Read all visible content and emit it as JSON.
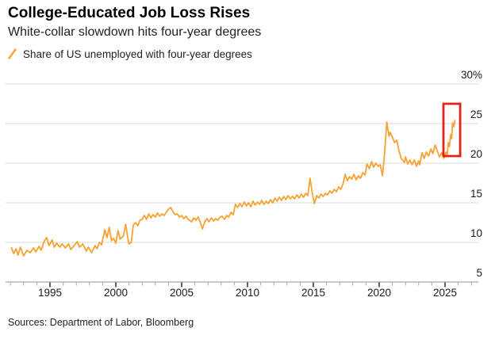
{
  "header": {
    "title": "College-Educated Job Loss Rises",
    "subtitle": "White-collar slowdown hits four-year degrees"
  },
  "legend": {
    "label": "Share of US unemployed with four-year degrees",
    "marker_color": "#f7a232"
  },
  "footer": {
    "sources": "Sources: Department of Labor, Bloomberg"
  },
  "chart_data": {
    "type": "line",
    "title": "College-Educated Job Loss Rises",
    "subtitle": "White-collar slowdown hits four-year degrees",
    "xlabel": "",
    "ylabel": "Share of US unemployed with four-year degrees (%)",
    "ylim": [
      5,
      30
    ],
    "xlim": [
      1991.7,
      2027.5
    ],
    "grid": "horizontal",
    "legend_position": "top-left",
    "line_color": "#f7a232",
    "grid_color": "#d8d8d8",
    "axis_color": "#a8a8a8",
    "tick_color_minor": "#a8a8a8",
    "tick_color_major": "#2b2b2b",
    "highlight_color": "#e02417",
    "y_ticks": [
      {
        "value": 30,
        "label": "30%"
      },
      {
        "value": 25,
        "label": "25"
      },
      {
        "value": 20,
        "label": "20"
      },
      {
        "value": 15,
        "label": "15"
      },
      {
        "value": 10,
        "label": "10"
      },
      {
        "value": 5,
        "label": "5"
      }
    ],
    "x_ticks": {
      "major": [
        {
          "value": 1995,
          "label": "1995"
        },
        {
          "value": 2000,
          "label": "2000"
        },
        {
          "value": 2005,
          "label": "2005"
        },
        {
          "value": 2010,
          "label": "2010"
        },
        {
          "value": 2015,
          "label": "2015"
        },
        {
          "value": 2020,
          "label": "2020"
        },
        {
          "value": 2025,
          "label": "2025"
        }
      ],
      "minor_step": 1,
      "minor_range": [
        1992,
        2027
      ]
    },
    "annotations": [
      {
        "type": "rect",
        "purpose": "highlight-recent-spike",
        "x1": 2024.88,
        "x2": 2026.15,
        "y1": 20.9,
        "y2": 27.5,
        "stroke": "#e02417",
        "stroke_width": 2.8
      }
    ],
    "series": [
      {
        "name": "Share of US unemployed with four-year degrees",
        "points": [
          [
            1992.08,
            9.3
          ],
          [
            1992.25,
            8.6
          ],
          [
            1992.42,
            9.2
          ],
          [
            1992.58,
            8.4
          ],
          [
            1992.75,
            9.4
          ],
          [
            1993.0,
            8.3
          ],
          [
            1993.25,
            9.0
          ],
          [
            1993.5,
            8.7
          ],
          [
            1993.75,
            9.3
          ],
          [
            1993.92,
            8.8
          ],
          [
            1994.17,
            9.5
          ],
          [
            1994.33,
            9.0
          ],
          [
            1994.58,
            10.2
          ],
          [
            1994.75,
            10.6
          ],
          [
            1994.92,
            9.6
          ],
          [
            1995.17,
            10.3
          ],
          [
            1995.33,
            9.4
          ],
          [
            1995.5,
            9.9
          ],
          [
            1995.75,
            9.4
          ],
          [
            1995.92,
            9.8
          ],
          [
            1996.17,
            9.3
          ],
          [
            1996.42,
            9.8
          ],
          [
            1996.58,
            9.1
          ],
          [
            1996.83,
            9.6
          ],
          [
            1997.08,
            10.1
          ],
          [
            1997.25,
            9.4
          ],
          [
            1997.5,
            9.8
          ],
          [
            1997.75,
            8.9
          ],
          [
            1997.92,
            9.4
          ],
          [
            1998.17,
            8.7
          ],
          [
            1998.42,
            9.6
          ],
          [
            1998.58,
            9.2
          ],
          [
            1998.75,
            10.0
          ],
          [
            1998.92,
            9.7
          ],
          [
            1999.17,
            11.6
          ],
          [
            1999.33,
            10.6
          ],
          [
            1999.5,
            11.9
          ],
          [
            1999.67,
            10.2
          ],
          [
            1999.83,
            10.5
          ],
          [
            2000.0,
            9.9
          ],
          [
            2000.17,
            11.5
          ],
          [
            2000.33,
            10.4
          ],
          [
            2000.58,
            10.8
          ],
          [
            2000.75,
            12.3
          ],
          [
            2000.92,
            10.5
          ],
          [
            2001.0,
            9.8
          ],
          [
            2001.17,
            10.0
          ],
          [
            2001.33,
            12.2
          ],
          [
            2001.5,
            12.5
          ],
          [
            2001.67,
            12.1
          ],
          [
            2001.83,
            12.8
          ],
          [
            2002.0,
            12.9
          ],
          [
            2002.17,
            13.4
          ],
          [
            2002.33,
            12.9
          ],
          [
            2002.5,
            13.6
          ],
          [
            2002.67,
            13.1
          ],
          [
            2002.83,
            13.5
          ],
          [
            2003.0,
            13.2
          ],
          [
            2003.17,
            13.7
          ],
          [
            2003.33,
            13.3
          ],
          [
            2003.5,
            13.6
          ],
          [
            2003.67,
            13.4
          ],
          [
            2003.83,
            13.8
          ],
          [
            2004.0,
            14.2
          ],
          [
            2004.17,
            14.4
          ],
          [
            2004.33,
            13.9
          ],
          [
            2004.5,
            13.5
          ],
          [
            2004.67,
            13.6
          ],
          [
            2004.83,
            13.2
          ],
          [
            2005.0,
            13.4
          ],
          [
            2005.17,
            13.0
          ],
          [
            2005.33,
            13.3
          ],
          [
            2005.5,
            12.9
          ],
          [
            2005.75,
            12.6
          ],
          [
            2005.92,
            13.1
          ],
          [
            2006.08,
            12.8
          ],
          [
            2006.25,
            13.2
          ],
          [
            2006.42,
            12.5
          ],
          [
            2006.58,
            11.7
          ],
          [
            2006.75,
            12.6
          ],
          [
            2006.92,
            13.0
          ],
          [
            2007.08,
            12.6
          ],
          [
            2007.25,
            13.1
          ],
          [
            2007.42,
            12.7
          ],
          [
            2007.58,
            13.0
          ],
          [
            2007.75,
            12.8
          ],
          [
            2007.92,
            13.2
          ],
          [
            2008.08,
            13.3
          ],
          [
            2008.25,
            12.9
          ],
          [
            2008.42,
            13.4
          ],
          [
            2008.58,
            13.2
          ],
          [
            2008.75,
            13.8
          ],
          [
            2008.92,
            13.5
          ],
          [
            2009.08,
            14.8
          ],
          [
            2009.25,
            14.4
          ],
          [
            2009.42,
            14.9
          ],
          [
            2009.58,
            14.5
          ],
          [
            2009.75,
            15.1
          ],
          [
            2009.92,
            14.6
          ],
          [
            2010.08,
            15.0
          ],
          [
            2010.25,
            14.5
          ],
          [
            2010.42,
            15.2
          ],
          [
            2010.58,
            14.7
          ],
          [
            2010.75,
            15.1
          ],
          [
            2010.92,
            14.8
          ],
          [
            2011.08,
            15.3
          ],
          [
            2011.25,
            14.8
          ],
          [
            2011.42,
            15.2
          ],
          [
            2011.58,
            14.9
          ],
          [
            2011.75,
            15.4
          ],
          [
            2011.92,
            15.0
          ],
          [
            2012.08,
            15.6
          ],
          [
            2012.25,
            15.2
          ],
          [
            2012.42,
            15.7
          ],
          [
            2012.58,
            15.3
          ],
          [
            2012.75,
            15.8
          ],
          [
            2012.92,
            15.4
          ],
          [
            2013.08,
            15.9
          ],
          [
            2013.25,
            15.5
          ],
          [
            2013.42,
            15.8
          ],
          [
            2013.58,
            15.5
          ],
          [
            2013.75,
            16.0
          ],
          [
            2013.92,
            15.6
          ],
          [
            2014.08,
            16.1
          ],
          [
            2014.25,
            15.7
          ],
          [
            2014.42,
            16.2
          ],
          [
            2014.58,
            15.9
          ],
          [
            2014.75,
            18.1
          ],
          [
            2014.92,
            16.2
          ],
          [
            2015.08,
            14.9
          ],
          [
            2015.25,
            15.9
          ],
          [
            2015.42,
            15.6
          ],
          [
            2015.58,
            16.1
          ],
          [
            2015.75,
            15.8
          ],
          [
            2015.92,
            16.2
          ],
          [
            2016.08,
            16.0
          ],
          [
            2016.25,
            16.5
          ],
          [
            2016.42,
            16.2
          ],
          [
            2016.58,
            16.7
          ],
          [
            2016.75,
            16.4
          ],
          [
            2016.92,
            17.0
          ],
          [
            2017.08,
            16.7
          ],
          [
            2017.25,
            17.4
          ],
          [
            2017.42,
            18.6
          ],
          [
            2017.58,
            17.8
          ],
          [
            2017.75,
            18.3
          ],
          [
            2017.92,
            18.0
          ],
          [
            2018.08,
            18.6
          ],
          [
            2018.25,
            17.9
          ],
          [
            2018.42,
            18.4
          ],
          [
            2018.58,
            18.1
          ],
          [
            2018.75,
            18.8
          ],
          [
            2018.92,
            18.5
          ],
          [
            2019.08,
            19.9
          ],
          [
            2019.25,
            19.3
          ],
          [
            2019.42,
            20.2
          ],
          [
            2019.58,
            19.5
          ],
          [
            2019.75,
            20.0
          ],
          [
            2019.92,
            19.6
          ],
          [
            2020.08,
            19.8
          ],
          [
            2020.25,
            18.4
          ],
          [
            2020.42,
            21.5
          ],
          [
            2020.58,
            25.2
          ],
          [
            2020.67,
            24.2
          ],
          [
            2020.75,
            23.4
          ],
          [
            2020.83,
            23.9
          ],
          [
            2021.0,
            23.3
          ],
          [
            2021.17,
            22.6
          ],
          [
            2021.33,
            22.9
          ],
          [
            2021.5,
            21.6
          ],
          [
            2021.67,
            20.6
          ],
          [
            2021.92,
            20.1
          ],
          [
            2022.0,
            20.8
          ],
          [
            2022.17,
            19.9
          ],
          [
            2022.33,
            20.4
          ],
          [
            2022.5,
            19.8
          ],
          [
            2022.67,
            20.4
          ],
          [
            2022.83,
            19.6
          ],
          [
            2023.0,
            20.3
          ],
          [
            2023.08,
            19.8
          ],
          [
            2023.25,
            21.3
          ],
          [
            2023.42,
            20.6
          ],
          [
            2023.58,
            21.4
          ],
          [
            2023.75,
            20.9
          ],
          [
            2023.92,
            21.8
          ],
          [
            2024.08,
            21.2
          ],
          [
            2024.25,
            22.3
          ],
          [
            2024.42,
            21.5
          ],
          [
            2024.58,
            20.8
          ],
          [
            2024.75,
            21.3
          ],
          [
            2024.92,
            20.6
          ],
          [
            2025.08,
            21.4
          ],
          [
            2025.17,
            21.1
          ],
          [
            2025.25,
            22.6
          ],
          [
            2025.33,
            22.1
          ],
          [
            2025.42,
            23.6
          ],
          [
            2025.5,
            23.1
          ],
          [
            2025.58,
            25.1
          ],
          [
            2025.67,
            24.6
          ],
          [
            2025.75,
            25.4
          ]
        ]
      }
    ]
  }
}
